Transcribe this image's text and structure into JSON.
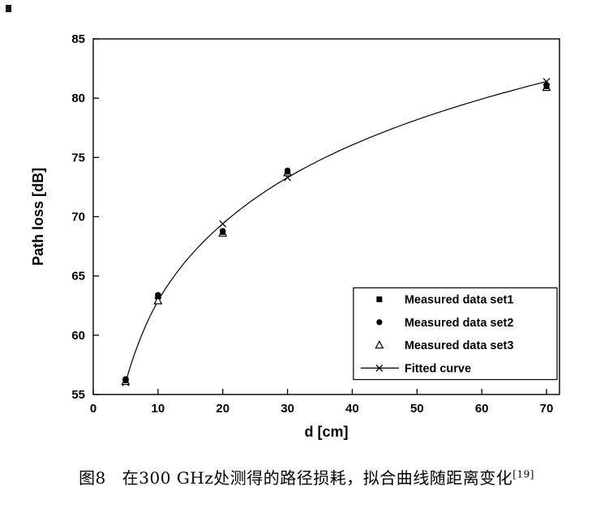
{
  "figure": {
    "caption_label": "图8",
    "caption_text": "在300 GHz处测得的路径损耗，拟合曲线随距离变化",
    "caption_reference": "[19]"
  },
  "chart_data": {
    "type": "scatter",
    "title": "",
    "xlabel": "d [cm]",
    "ylabel": "Path loss [dB]",
    "xlim": [
      0,
      72
    ],
    "ylim": [
      55,
      85
    ],
    "x_ticks": [
      0,
      10,
      20,
      30,
      40,
      50,
      60,
      70
    ],
    "y_ticks": [
      55,
      60,
      65,
      70,
      75,
      80,
      85
    ],
    "grid": false,
    "legend_position": "inside-lower-right",
    "axis_color": "#000000",
    "line_color": "#000000",
    "background_color": "#ffffff",
    "series": [
      {
        "name": "Measured data set1",
        "marker": "filled-square",
        "x": [
          5,
          10,
          20,
          30,
          70
        ],
        "y": [
          56.2,
          63.3,
          68.7,
          73.8,
          81.0
        ]
      },
      {
        "name": "Measured data set2",
        "marker": "filled-circle",
        "x": [
          5,
          10,
          20,
          30,
          70
        ],
        "y": [
          56.3,
          63.4,
          68.8,
          73.9,
          81.1
        ]
      },
      {
        "name": "Measured data set3",
        "marker": "open-triangle",
        "x": [
          5,
          10,
          20,
          30,
          70
        ],
        "y": [
          56.1,
          62.9,
          68.6,
          73.7,
          80.9
        ]
      },
      {
        "name": "Fitted curve",
        "marker": "x",
        "line": true,
        "x": [
          5,
          10,
          20,
          30,
          70
        ],
        "y": [
          56.0,
          62.9,
          69.4,
          73.3,
          81.4
        ]
      }
    ]
  }
}
